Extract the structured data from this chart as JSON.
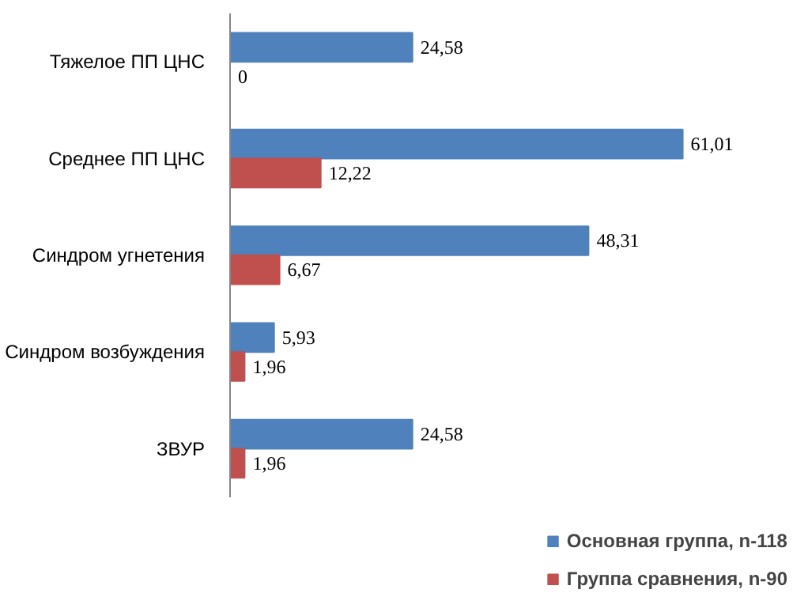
{
  "chart_data": {
    "type": "bar",
    "orientation": "horizontal",
    "categories": [
      "Тяжелое ПП ЦНС",
      "Среднее ПП ЦНС",
      "Синдром угнетения",
      "Синдром возбуждения",
      "ЗВУР"
    ],
    "series": [
      {
        "name": "Основная группа, n-118",
        "color": "#4f81bd",
        "values": [
          24.58,
          61.01,
          48.31,
          5.93,
          24.58
        ],
        "value_labels": [
          "24,58",
          "61,01",
          "48,31",
          "5,93",
          "24,58"
        ]
      },
      {
        "name": "Группа сравнения, n-90",
        "color": "#c0504d",
        "values": [
          0,
          12.22,
          6.67,
          1.96,
          1.96
        ],
        "value_labels": [
          "0",
          "12,22",
          "6,67",
          "1,96",
          "1,96"
        ]
      }
    ],
    "grid": false,
    "legend": "bottom right"
  }
}
